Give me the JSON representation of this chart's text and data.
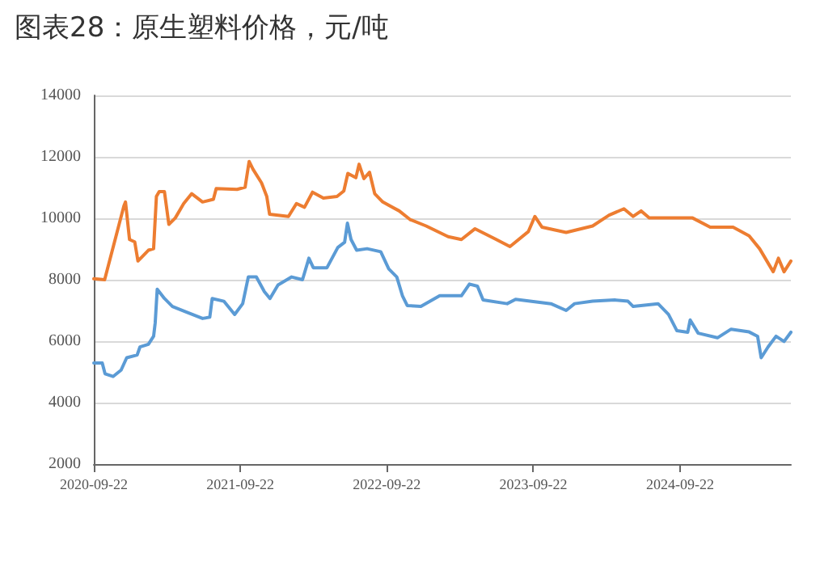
{
  "chart_data": {
    "type": "line",
    "title": "图表28：原生塑料价格，元/吨",
    "xlim": [
      "2020-09-22",
      "2025-06-25"
    ],
    "xticks": [
      "2020-09-22",
      "2021-09-22",
      "2022-09-22",
      "2023-09-22",
      "2024-09-22"
    ],
    "ylim": [
      2000,
      14000
    ],
    "yticks": [
      2000,
      4000,
      6000,
      8000,
      10000,
      12000,
      14000
    ],
    "grid": "y",
    "marker": "none",
    "line_style": "solid",
    "series": [
      {
        "color": "#5b9bd5",
        "x": [
          "2020-09-22",
          "2020-10-13",
          "2020-10-20",
          "2020-11-09",
          "2020-11-29",
          "2020-12-13",
          "2021-01-08",
          "2021-01-15",
          "2021-02-05",
          "2021-02-18",
          "2021-02-22",
          "2021-02-27",
          "2021-03-17",
          "2021-04-06",
          "2021-05-10",
          "2021-06-20",
          "2021-07-08",
          "2021-07-14",
          "2021-08-12",
          "2021-09-08",
          "2021-09-28",
          "2021-10-12",
          "2021-11-01",
          "2021-11-21",
          "2021-12-05",
          "2021-12-25",
          "2022-01-28",
          "2022-02-24",
          "2022-03-12",
          "2022-03-23",
          "2022-04-26",
          "2022-05-23",
          "2022-06-09",
          "2022-06-16",
          "2022-06-25",
          "2022-07-09",
          "2022-08-04",
          "2022-09-07",
          "2022-09-27",
          "2022-10-17",
          "2022-10-31",
          "2022-11-12",
          "2022-12-16",
          "2023-02-01",
          "2023-03-27",
          "2023-04-16",
          "2023-05-06",
          "2023-05-20",
          "2023-07-19",
          "2023-08-09",
          "2023-11-05",
          "2023-12-13",
          "2024-01-03",
          "2024-02-17",
          "2024-04-12",
          "2024-05-15",
          "2024-05-28",
          "2024-07-29",
          "2024-08-24",
          "2024-09-14",
          "2024-10-11",
          "2024-10-17",
          "2024-11-06",
          "2024-12-24",
          "2025-01-27",
          "2025-03-13",
          "2025-04-03",
          "2025-04-12",
          "2025-04-29",
          "2025-05-19",
          "2025-06-08",
          "2025-06-25"
        ],
        "values": [
          5290,
          5290,
          4940,
          4850,
          5060,
          5460,
          5550,
          5810,
          5900,
          6160,
          6600,
          7690,
          7390,
          7130,
          6950,
          6740,
          6780,
          7390,
          7300,
          6870,
          7220,
          8090,
          8090,
          7610,
          7390,
          7830,
          8090,
          8000,
          8700,
          8390,
          8390,
          9050,
          9220,
          9840,
          9310,
          8960,
          9010,
          8910,
          8350,
          8090,
          7480,
          7160,
          7130,
          7480,
          7480,
          7860,
          7790,
          7340,
          7220,
          7360,
          7220,
          7000,
          7220,
          7300,
          7340,
          7300,
          7130,
          7220,
          6870,
          6340,
          6290,
          6690,
          6260,
          6110,
          6390,
          6300,
          6160,
          5460,
          5810,
          6160,
          5990,
          6290
        ]
      },
      {
        "color": "#ed7d31",
        "x": [
          "2020-09-22",
          "2020-10-19",
          "2020-12-06",
          "2020-12-10",
          "2020-12-20",
          "2021-01-02",
          "2021-01-10",
          "2021-02-05",
          "2021-02-18",
          "2021-02-25",
          "2021-03-04",
          "2021-03-17",
          "2021-03-28",
          "2021-04-13",
          "2021-05-04",
          "2021-05-24",
          "2021-06-20",
          "2021-07-17",
          "2021-07-24",
          "2021-09-14",
          "2021-10-04",
          "2021-10-14",
          "2021-10-24",
          "2021-11-14",
          "2021-11-27",
          "2021-12-04",
          "2022-01-20",
          "2022-02-09",
          "2022-03-01",
          "2022-03-21",
          "2022-04-17",
          "2022-05-21",
          "2022-06-07",
          "2022-06-17",
          "2022-07-07",
          "2022-07-15",
          "2022-07-27",
          "2022-08-10",
          "2022-08-23",
          "2022-09-12",
          "2022-10-23",
          "2022-11-19",
          "2022-12-29",
          "2023-02-22",
          "2023-03-27",
          "2023-04-30",
          "2023-06-22",
          "2023-07-26",
          "2023-09-10",
          "2023-09-26",
          "2023-10-14",
          "2023-12-13",
          "2024-02-17",
          "2024-03-29",
          "2024-05-05",
          "2024-05-28",
          "2024-06-17",
          "2024-07-07",
          "2024-10-23",
          "2024-12-06",
          "2025-02-01",
          "2025-03-13",
          "2025-04-08",
          "2025-05-12",
          "2025-05-25",
          "2025-06-08",
          "2025-06-25"
        ],
        "values": [
          8030,
          8000,
          10400,
          10530,
          9310,
          9230,
          8610,
          8960,
          9010,
          10710,
          10870,
          10870,
          9800,
          10010,
          10480,
          10800,
          10530,
          10620,
          10970,
          10940,
          11010,
          11850,
          11590,
          11150,
          10710,
          10130,
          10060,
          10480,
          10360,
          10850,
          10660,
          10710,
          10890,
          11460,
          11320,
          11760,
          11290,
          11500,
          10800,
          10530,
          10240,
          9960,
          9750,
          9400,
          9310,
          9660,
          9310,
          9080,
          9570,
          10060,
          9710,
          9540,
          9750,
          10100,
          10310,
          10060,
          10240,
          10010,
          10010,
          9710,
          9710,
          9430,
          9010,
          8260,
          8700,
          8260,
          8610
        ]
      }
    ]
  }
}
